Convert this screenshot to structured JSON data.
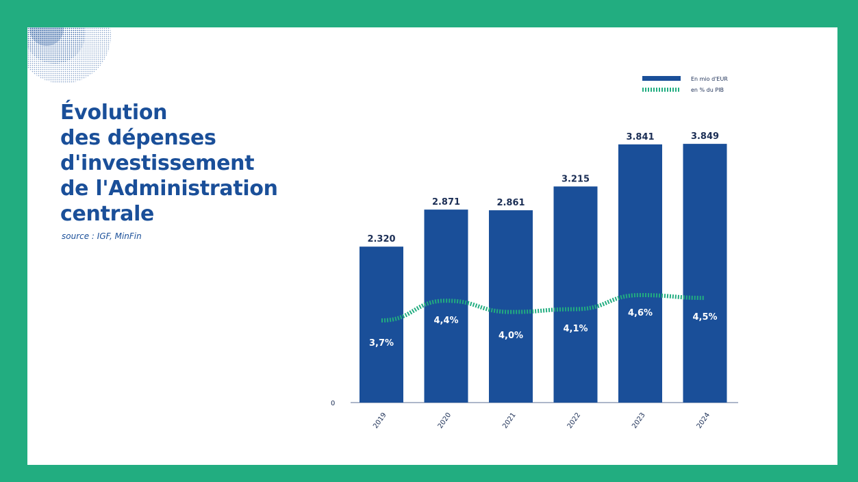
{
  "title_lines": [
    "Évolution",
    "des dépenses",
    "d'investissement",
    "de l'Administration",
    "centrale"
  ],
  "source": "source : IGF, MinFin",
  "colors": {
    "border": "#22ad80",
    "bar": "#1a4f99",
    "line": "#22ad80",
    "title": "#1a4f99",
    "text_dark": "#1b2e55"
  },
  "chart_data": {
    "type": "bar",
    "categories": [
      "2019",
      "2020",
      "2021",
      "2022",
      "2023",
      "2024"
    ],
    "series": [
      {
        "name": "En mio d'EUR",
        "type": "bar",
        "values": [
          2320,
          2871,
          2861,
          3215,
          3841,
          3849
        ],
        "labels": [
          "2.320",
          "2.871",
          "2.861",
          "3.215",
          "3.841",
          "3.849"
        ]
      },
      {
        "name": "en % du PIB",
        "type": "line",
        "style": "dotted",
        "values": [
          3.7,
          4.4,
          4.0,
          4.1,
          4.6,
          4.5
        ],
        "labels": [
          "3,7%",
          "4,4%",
          "4,0%",
          "4,1%",
          "4,6%",
          "4,5%"
        ]
      }
    ],
    "y_tick_label": "0",
    "ylim": [
      0,
      3850
    ],
    "legend": "top-right",
    "grid": false
  }
}
